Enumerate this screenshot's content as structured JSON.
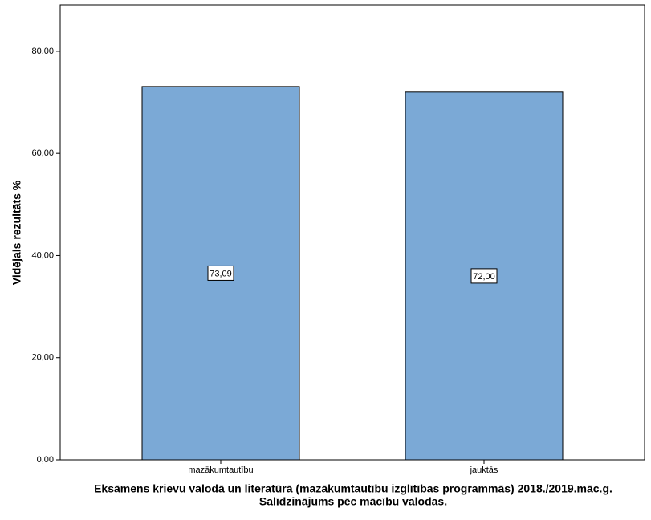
{
  "chart_data": {
    "type": "bar",
    "ylabel": "Vidējais rezultāts %",
    "xlabel": [
      "Eksāmens krievu valodā un literatūrā (mazākumtautību izglītības programmās) 2018./2019.māc.g.",
      "Salīdzinājums pēc mācību valodas."
    ],
    "categories": [
      "mazākumtautību",
      "jauktās"
    ],
    "values": [
      73.09,
      72.0
    ],
    "value_labels": [
      "73,09",
      "72,00"
    ],
    "color": "#7ba9d6",
    "ylim": [
      0,
      89.1
    ],
    "yticks": [
      {
        "value": 0,
        "label": "0,00"
      },
      {
        "value": 20,
        "label": "20,00"
      },
      {
        "value": 40,
        "label": "40,00"
      },
      {
        "value": 60,
        "label": "60,00"
      },
      {
        "value": 80,
        "label": "80,00"
      }
    ],
    "grid": false
  }
}
